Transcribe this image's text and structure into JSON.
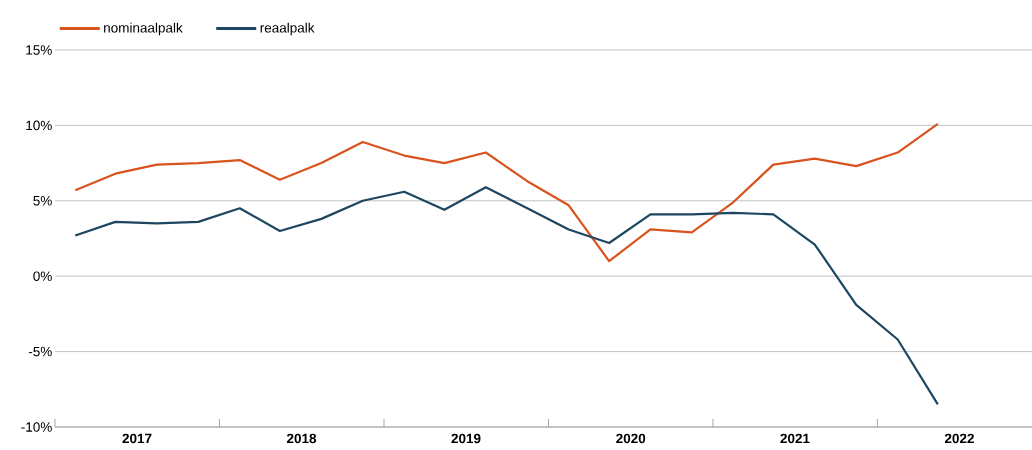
{
  "chart_data": {
    "type": "line",
    "x": [
      "2017-02-15",
      "2017-05-15",
      "2017-08-15",
      "2017-11-15",
      "2018-02-15",
      "2018-05-15",
      "2018-08-15",
      "2018-11-15",
      "2019-02-15",
      "2019-05-15",
      "2019-08-15",
      "2019-11-15",
      "2020-02-15",
      "2020-05-15",
      "2020-08-15",
      "2020-11-15",
      "2021-02-15",
      "2021-05-15",
      "2021-08-15",
      "2021-11-15",
      "2022-02-15",
      "2022-05-15"
    ],
    "series": [
      {
        "name": "nominaalpalk",
        "color": "#d9531e",
        "values": [
          5.7,
          6.8,
          7.4,
          7.5,
          7.7,
          6.4,
          7.5,
          8.9,
          8.0,
          7.5,
          8.2,
          6.3,
          4.7,
          1.0,
          3.1,
          2.9,
          4.9,
          7.4,
          7.8,
          7.3,
          8.2,
          10.1
        ]
      },
      {
        "name": "reaalpalk",
        "color": "#1d4660",
        "values": [
          2.7,
          3.6,
          3.5,
          3.6,
          4.5,
          3.0,
          3.8,
          5.0,
          5.6,
          4.4,
          5.9,
          4.5,
          3.1,
          2.2,
          4.1,
          4.1,
          4.2,
          4.1,
          2.1,
          -1.9,
          -4.2,
          -8.5
        ]
      }
    ],
    "xlim": [
      "2017-01-01",
      "2022-12-10"
    ],
    "xticks": [
      {
        "value": "2017-01-01",
        "label": null
      },
      {
        "value": "2017-07-02",
        "label": "2017"
      },
      {
        "value": "2018-01-01",
        "label": null
      },
      {
        "value": "2018-07-02",
        "label": "2018"
      },
      {
        "value": "2019-01-01",
        "label": null
      },
      {
        "value": "2019-07-02",
        "label": "2019"
      },
      {
        "value": "2020-01-01",
        "label": null
      },
      {
        "value": "2020-07-02",
        "label": "2020"
      },
      {
        "value": "2021-01-01",
        "label": null
      },
      {
        "value": "2021-07-02",
        "label": "2021"
      },
      {
        "value": "2022-01-01",
        "label": null
      },
      {
        "value": "2022-07-02",
        "label": "2022"
      }
    ],
    "ylim": [
      -10,
      15
    ],
    "yticks": [
      {
        "value": -10,
        "label": "-10%"
      },
      {
        "value": -5,
        "label": "-5%"
      },
      {
        "value": 0,
        "label": "0%"
      },
      {
        "value": 5,
        "label": "5%"
      },
      {
        "value": 10,
        "label": "10%"
      },
      {
        "value": 15,
        "label": "15%"
      }
    ],
    "grid": "y",
    "legend": "top left",
    "marker": "none",
    "line_style": "solid"
  }
}
